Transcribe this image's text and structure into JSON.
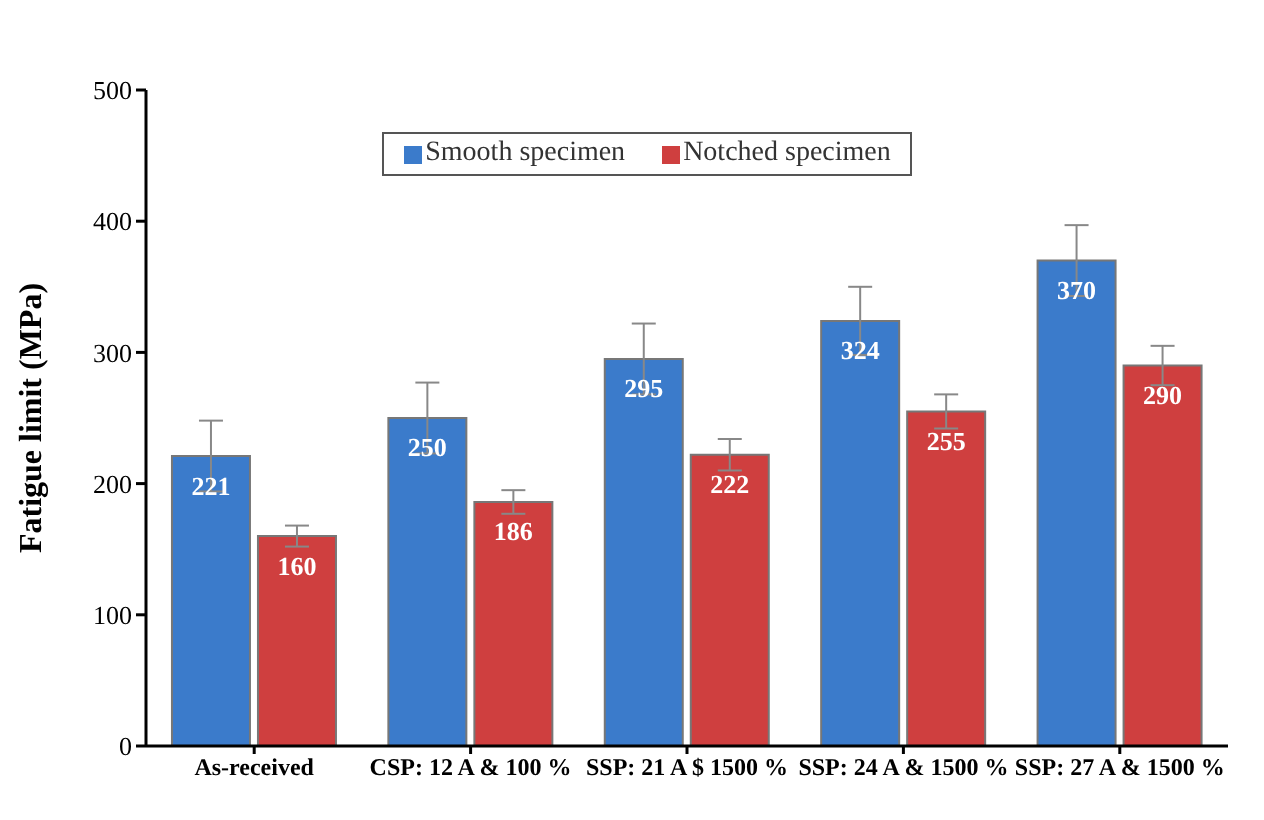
{
  "chart_data": {
    "type": "bar",
    "ylabel": "Fatigue limit (MPa)",
    "categories": [
      "As-received",
      "CSP: 12 A & 100 %",
      "SSP: 21 A $ 1500 %",
      "SSP: 24 A & 1500 %",
      "SSP: 27 A & 1500 %"
    ],
    "series": [
      {
        "name": "Smooth specimen",
        "color": "#3b7bcb",
        "values": [
          221,
          250,
          295,
          324,
          370
        ],
        "errors": [
          27,
          27,
          27,
          26,
          27
        ]
      },
      {
        "name": "Notched specimen",
        "color": "#cf3f3f",
        "values": [
          160,
          186,
          222,
          255,
          290
        ],
        "errors": [
          8,
          9,
          12,
          13,
          15
        ]
      }
    ],
    "ylim": [
      0,
      500
    ],
    "yticks": [
      0,
      100,
      200,
      300,
      400,
      500
    ],
    "grid": false,
    "legend": "top",
    "data_labels": true
  }
}
